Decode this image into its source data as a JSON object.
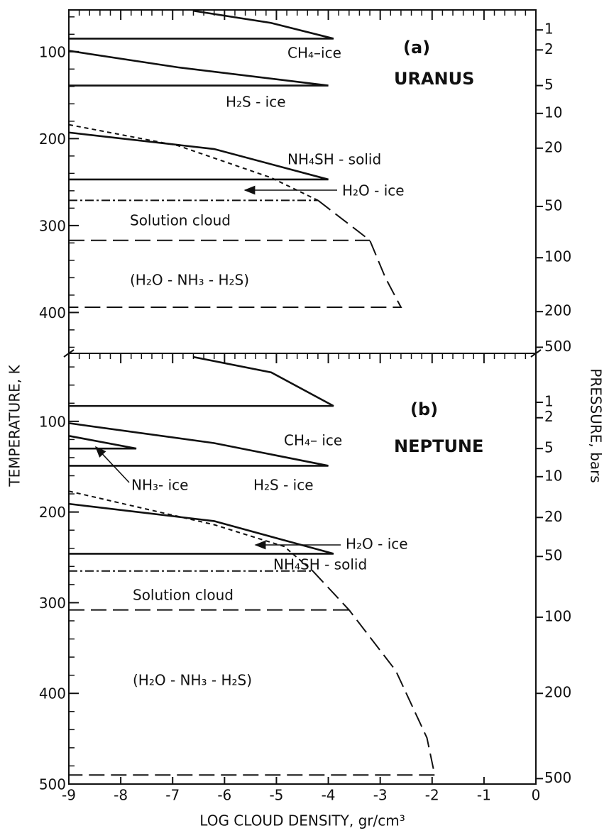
{
  "figure": {
    "xlabel": "LOG CLOUD DENSITY, gr/cm³",
    "ylabel": "TEMPERATURE, K",
    "y2label": "PRESSURE, bars"
  },
  "chart_data": [
    {
      "type": "line",
      "panel": "(a)",
      "title": "URANUS",
      "xlim": [
        -9,
        0
      ],
      "xticks": [
        -9,
        -8,
        -7,
        -6,
        -5,
        -4,
        -3,
        -2,
        -1,
        0
      ],
      "ylim": [
        52,
        447
      ],
      "yticks": [
        100,
        200,
        300,
        400
      ],
      "y_inverted": true,
      "pressure_ticks": [
        {
          "pressure": 1,
          "temperature": 75
        },
        {
          "pressure": 2,
          "temperature": 98
        },
        {
          "pressure": 5,
          "temperature": 139
        },
        {
          "pressure": 10,
          "temperature": 171
        },
        {
          "pressure": 20,
          "temperature": 211
        },
        {
          "pressure": 50,
          "temperature": 278
        },
        {
          "pressure": 100,
          "temperature": 337
        },
        {
          "pressure": 200,
          "temperature": 399
        },
        {
          "pressure": 500,
          "temperature": 440
        }
      ],
      "series": [
        {
          "style": "solid",
          "x": [
            -6.6,
            -5.1,
            -3.9,
            -9
          ],
          "y": [
            53,
            67,
            85,
            85
          ]
        },
        {
          "style": "solid",
          "x": [
            -9,
            -6.9,
            -4.0,
            -9
          ],
          "y": [
            99,
            118,
            139,
            139
          ]
        },
        {
          "style": "solid",
          "x": [
            -9,
            -6.2,
            -4.0,
            -9
          ],
          "y": [
            193,
            212,
            247,
            247
          ]
        },
        {
          "style": "dotted",
          "x": [
            -9,
            -6.9,
            -5.1,
            -4.2
          ],
          "y": [
            184,
            208,
            245,
            271
          ]
        },
        {
          "style": "dashdot",
          "x": [
            -9,
            -4.2
          ],
          "y": [
            271,
            271
          ]
        },
        {
          "style": "longdash",
          "x": [
            -4.2,
            -3.2,
            -2.9,
            -2.6,
            -9
          ],
          "y": [
            271,
            317,
            360,
            394,
            394
          ]
        },
        {
          "style": "longdash",
          "x": [
            -9,
            -3.2
          ],
          "y": [
            317,
            317
          ]
        }
      ],
      "annotations": [
        "CH₄–ice",
        "H₂S - ice",
        "NH₄SH - solid",
        "H₂O - ice",
        "Solution cloud",
        "(H₂O - NH₃ - H₂S)"
      ]
    },
    {
      "type": "line",
      "panel": "(b)",
      "title": "NEPTUNE",
      "xlim": [
        -9,
        0
      ],
      "xticks": [
        -9,
        -8,
        -7,
        -6,
        -5,
        -4,
        -3,
        -2,
        -1,
        0
      ],
      "ylim": [
        25,
        500
      ],
      "yticks": [
        100,
        200,
        300,
        400,
        500
      ],
      "y_inverted": true,
      "pressure_ticks": [
        {
          "pressure": 1,
          "temperature": 79
        },
        {
          "pressure": 2,
          "temperature": 96
        },
        {
          "pressure": 5,
          "temperature": 130
        },
        {
          "pressure": 10,
          "temperature": 161
        },
        {
          "pressure": 20,
          "temperature": 206
        },
        {
          "pressure": 50,
          "temperature": 249
        },
        {
          "pressure": 100,
          "temperature": 316
        },
        {
          "pressure": 200,
          "temperature": 400
        },
        {
          "pressure": 500,
          "temperature": 494
        }
      ],
      "series": [
        {
          "style": "solid",
          "x": [
            -6.6,
            -5.1,
            -3.9,
            -9
          ],
          "y": [
            29,
            46,
            83,
            83
          ]
        },
        {
          "style": "solid",
          "x": [
            -9,
            -7.7,
            -9
          ],
          "y": [
            116,
            130,
            130
          ]
        },
        {
          "style": "solid",
          "x": [
            -9,
            -6.2,
            -4.0,
            -9
          ],
          "y": [
            102,
            124,
            149,
            149
          ]
        },
        {
          "style": "solid",
          "x": [
            -9,
            -6.2,
            -3.9,
            -9
          ],
          "y": [
            191,
            210,
            246,
            246
          ]
        },
        {
          "style": "dotted",
          "x": [
            -9,
            -6.2,
            -4.85,
            -4.3
          ],
          "y": [
            177,
            214,
            238,
            265
          ]
        },
        {
          "style": "dashdot",
          "x": [
            -9,
            -4.3
          ],
          "y": [
            265,
            265
          ]
        },
        {
          "style": "longdash",
          "x": [
            -4.3,
            -3.6,
            -2.7,
            -2.1,
            -1.95,
            -9
          ],
          "y": [
            265,
            308,
            375,
            449,
            490,
            490
          ]
        },
        {
          "style": "longdash",
          "x": [
            -9,
            -3.6
          ],
          "y": [
            308,
            308
          ]
        }
      ],
      "annotations": [
        "CH₄– ice",
        "NH₃- ice",
        "H₂S - ice",
        "NH₄SH - solid",
        "H₂O - ice",
        "Solution cloud",
        "(H₂O - NH₃ - H₂S)"
      ]
    }
  ]
}
